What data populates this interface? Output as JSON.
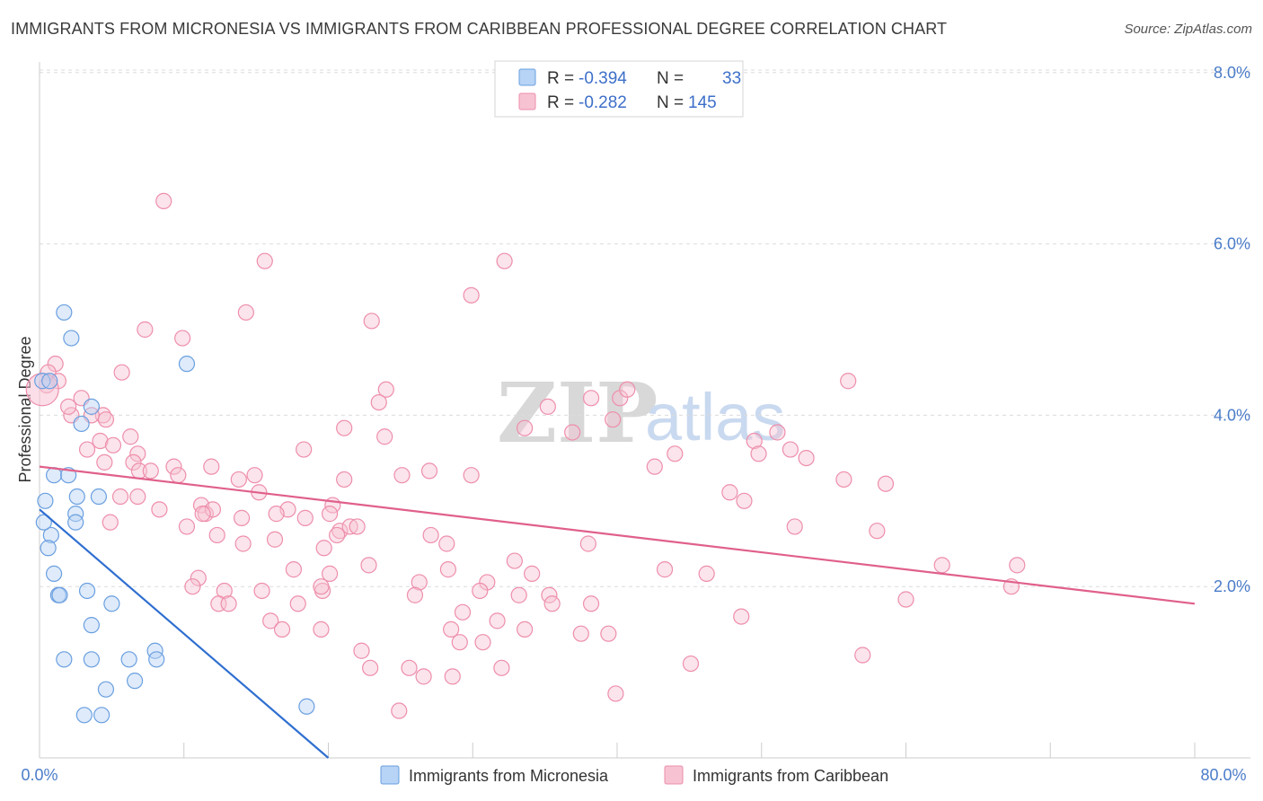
{
  "title": "IMMIGRANTS FROM MICRONESIA VS IMMIGRANTS FROM CARIBBEAN PROFESSIONAL DEGREE CORRELATION CHART",
  "source": "Source: ZipAtlas.com",
  "colors": {
    "micronesia_fill": "#b7d3f5",
    "micronesia_stroke": "#6a9fe0",
    "micronesia_line": "#2f6fd0",
    "caribbean_fill": "#f7c3d3",
    "caribbean_stroke": "#ee8eab",
    "caribbean_line": "#e0608a",
    "accent_text": "#3d6fc9",
    "grid": "#dcdcdc"
  },
  "legend": {
    "micronesia": {
      "r_label": "R =",
      "r_value": "-0.394",
      "n_label": "N =",
      "n_value": "33"
    },
    "caribbean": {
      "r_label": "R =",
      "r_value": "-0.282",
      "n_label": "N =",
      "n_value": "145"
    }
  },
  "watermark": {
    "zip": "ZIP",
    "atlas": "atlas"
  },
  "chart_data": {
    "type": "scatter",
    "title": "IMMIGRANTS FROM MICRONESIA VS IMMIGRANTS FROM CARIBBEAN PROFESSIONAL DEGREE CORRELATION CHART",
    "xlabel": "",
    "ylabel": "Professional Degree",
    "xlim": [
      0,
      80
    ],
    "ylim": [
      0,
      8.4
    ],
    "x_tick_labels": [
      "0.0%",
      "80.0%"
    ],
    "y_ticks": [
      2,
      4,
      6,
      8
    ],
    "y_tick_labels": [
      "2.0%",
      "4.0%",
      "6.0%",
      "8.0%"
    ],
    "grid": true,
    "series": [
      {
        "name": "Immigrants from Micronesia",
        "trend": {
          "x": [
            0,
            20
          ],
          "y": [
            2.9,
            0
          ]
        },
        "points": [
          [
            1.7,
            5.2
          ],
          [
            2.2,
            4.9
          ],
          [
            10.2,
            4.6
          ],
          [
            0.2,
            4.4
          ],
          [
            0.7,
            4.4
          ],
          [
            2.9,
            3.9
          ],
          [
            3.6,
            4.1
          ],
          [
            1.0,
            3.3
          ],
          [
            2.0,
            3.3
          ],
          [
            0.4,
            3.0
          ],
          [
            2.6,
            3.05
          ],
          [
            4.1,
            3.05
          ],
          [
            0.8,
            2.6
          ],
          [
            0.3,
            2.75
          ],
          [
            2.5,
            2.85
          ],
          [
            2.5,
            2.75
          ],
          [
            0.6,
            2.45
          ],
          [
            1.0,
            2.15
          ],
          [
            1.3,
            1.9
          ],
          [
            1.4,
            1.9
          ],
          [
            3.3,
            1.95
          ],
          [
            5.0,
            1.8
          ],
          [
            3.6,
            1.55
          ],
          [
            1.7,
            1.15
          ],
          [
            3.6,
            1.15
          ],
          [
            6.2,
            1.15
          ],
          [
            8.0,
            1.25
          ],
          [
            8.1,
            1.15
          ],
          [
            4.6,
            0.8
          ],
          [
            6.6,
            0.9
          ],
          [
            3.1,
            0.5
          ],
          [
            4.3,
            0.5
          ],
          [
            18.5,
            0.6
          ]
        ]
      },
      {
        "name": "Immigrants from Caribbean",
        "trend": {
          "x": [
            0,
            80
          ],
          "y": [
            3.4,
            1.8
          ]
        },
        "points": [
          [
            8.6,
            6.5
          ],
          [
            15.6,
            5.8
          ],
          [
            32.2,
            5.8
          ],
          [
            14.3,
            5.2
          ],
          [
            29.9,
            5.4
          ],
          [
            23.0,
            5.1
          ],
          [
            7.3,
            5.0
          ],
          [
            9.9,
            4.9
          ],
          [
            1.1,
            4.6
          ],
          [
            0.6,
            4.5
          ],
          [
            1.3,
            4.4
          ],
          [
            5.7,
            4.5
          ],
          [
            0.5,
            4.35
          ],
          [
            0.2,
            4.3
          ],
          [
            2.9,
            4.2
          ],
          [
            2.2,
            4.0
          ],
          [
            4.4,
            4.0
          ],
          [
            2.0,
            4.1
          ],
          [
            3.6,
            4.0
          ],
          [
            4.6,
            3.95
          ],
          [
            24.0,
            4.3
          ],
          [
            23.5,
            4.15
          ],
          [
            38.2,
            4.2
          ],
          [
            35.2,
            4.1
          ],
          [
            40.2,
            4.2
          ],
          [
            39.7,
            3.95
          ],
          [
            40.7,
            4.3
          ],
          [
            56.0,
            4.4
          ],
          [
            33.6,
            3.85
          ],
          [
            36.9,
            3.8
          ],
          [
            21.1,
            3.85
          ],
          [
            23.9,
            3.75
          ],
          [
            6.3,
            3.75
          ],
          [
            4.2,
            3.7
          ],
          [
            5.1,
            3.65
          ],
          [
            3.3,
            3.6
          ],
          [
            6.8,
            3.55
          ],
          [
            18.3,
            3.6
          ],
          [
            4.5,
            3.45
          ],
          [
            6.5,
            3.45
          ],
          [
            9.3,
            3.4
          ],
          [
            11.9,
            3.4
          ],
          [
            44.0,
            3.55
          ],
          [
            49.5,
            3.7
          ],
          [
            51.1,
            3.8
          ],
          [
            49.8,
            3.55
          ],
          [
            52.0,
            3.6
          ],
          [
            53.1,
            3.5
          ],
          [
            42.6,
            3.4
          ],
          [
            6.9,
            3.35
          ],
          [
            7.7,
            3.35
          ],
          [
            9.6,
            3.3
          ],
          [
            13.8,
            3.25
          ],
          [
            14.9,
            3.3
          ],
          [
            21.1,
            3.25
          ],
          [
            25.1,
            3.3
          ],
          [
            27.0,
            3.35
          ],
          [
            29.9,
            3.3
          ],
          [
            15.2,
            3.1
          ],
          [
            5.6,
            3.05
          ],
          [
            6.8,
            3.05
          ],
          [
            11.2,
            2.95
          ],
          [
            11.5,
            2.85
          ],
          [
            12.0,
            2.9
          ],
          [
            17.2,
            2.9
          ],
          [
            16.4,
            2.85
          ],
          [
            18.4,
            2.8
          ],
          [
            20.3,
            2.95
          ],
          [
            20.8,
            2.65
          ],
          [
            21.5,
            2.7
          ],
          [
            20.1,
            2.85
          ],
          [
            22.0,
            2.7
          ],
          [
            47.8,
            3.1
          ],
          [
            48.8,
            3.0
          ],
          [
            58.6,
            3.2
          ],
          [
            55.7,
            3.25
          ],
          [
            8.3,
            2.9
          ],
          [
            11.3,
            2.85
          ],
          [
            14.0,
            2.8
          ],
          [
            4.9,
            2.75
          ],
          [
            10.2,
            2.7
          ],
          [
            12.3,
            2.6
          ],
          [
            16.3,
            2.55
          ],
          [
            14.1,
            2.5
          ],
          [
            19.7,
            2.45
          ],
          [
            20.6,
            2.6
          ],
          [
            27.1,
            2.6
          ],
          [
            28.2,
            2.5
          ],
          [
            38.0,
            2.5
          ],
          [
            52.3,
            2.7
          ],
          [
            58.0,
            2.65
          ],
          [
            11.0,
            2.1
          ],
          [
            10.6,
            2.0
          ],
          [
            12.8,
            1.95
          ],
          [
            15.4,
            1.95
          ],
          [
            17.6,
            2.2
          ],
          [
            20.1,
            2.15
          ],
          [
            22.8,
            2.25
          ],
          [
            26.3,
            2.05
          ],
          [
            28.3,
            2.2
          ],
          [
            31.0,
            2.05
          ],
          [
            32.9,
            2.3
          ],
          [
            34.1,
            2.15
          ],
          [
            43.3,
            2.2
          ],
          [
            46.2,
            2.15
          ],
          [
            62.5,
            2.25
          ],
          [
            67.7,
            2.25
          ],
          [
            67.3,
            2.0
          ],
          [
            60.0,
            1.85
          ],
          [
            12.4,
            1.8
          ],
          [
            13.1,
            1.8
          ],
          [
            17.9,
            1.8
          ],
          [
            19.6,
            1.95
          ],
          [
            19.5,
            2.0
          ],
          [
            26.0,
            1.9
          ],
          [
            29.3,
            1.7
          ],
          [
            30.5,
            1.95
          ],
          [
            31.7,
            1.6
          ],
          [
            33.2,
            1.9
          ],
          [
            35.3,
            1.9
          ],
          [
            35.5,
            1.8
          ],
          [
            38.2,
            1.8
          ],
          [
            16.0,
            1.6
          ],
          [
            16.8,
            1.5
          ],
          [
            19.5,
            1.5
          ],
          [
            28.5,
            1.5
          ],
          [
            29.1,
            1.35
          ],
          [
            30.7,
            1.35
          ],
          [
            33.6,
            1.5
          ],
          [
            37.5,
            1.45
          ],
          [
            39.4,
            1.45
          ],
          [
            48.6,
            1.65
          ],
          [
            22.3,
            1.25
          ],
          [
            22.9,
            1.05
          ],
          [
            25.6,
            1.05
          ],
          [
            26.6,
            0.95
          ],
          [
            28.6,
            0.95
          ],
          [
            32.0,
            1.05
          ],
          [
            45.1,
            1.1
          ],
          [
            57.0,
            1.2
          ],
          [
            39.9,
            0.75
          ],
          [
            24.9,
            0.55
          ]
        ]
      }
    ]
  },
  "axes": {
    "ylabel": "Professional Degree",
    "x_min_label": "0.0%",
    "x_max_label": "80.0%"
  },
  "bottom_legend": {
    "micronesia_label": "Immigrants from Micronesia",
    "caribbean_label": "Immigrants from Caribbean"
  }
}
